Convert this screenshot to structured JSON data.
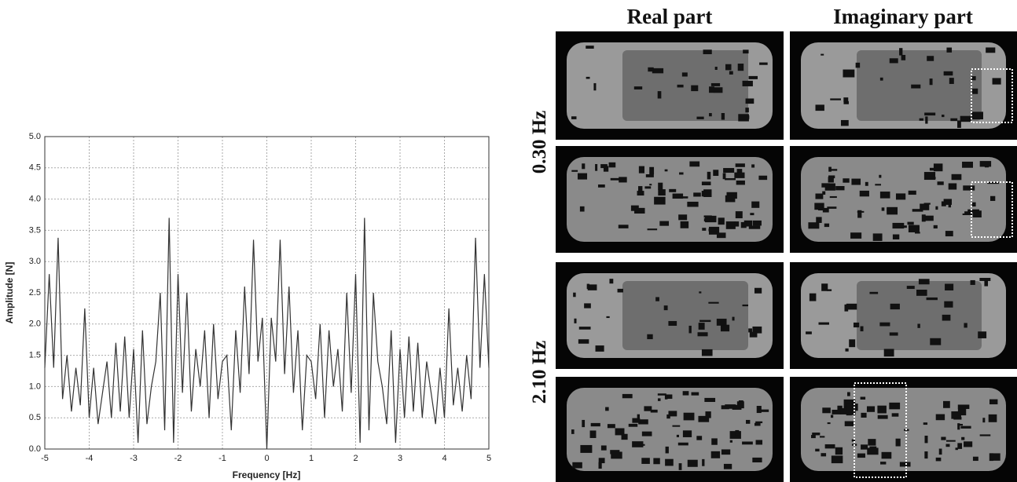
{
  "chart_data": {
    "type": "line",
    "x_label": "Frequency [Hz]",
    "y_label": "Amplitude [N]",
    "x": [
      -5,
      -4.9,
      -4.8,
      -4.7,
      -4.6,
      -4.5,
      -4.4,
      -4.3,
      -4.2,
      -4.1,
      -4,
      -3.9,
      -3.8,
      -3.7,
      -3.6,
      -3.5,
      -3.4,
      -3.3,
      -3.2,
      -3.1,
      -3,
      -2.9,
      -2.8,
      -2.7,
      -2.6,
      -2.5,
      -2.4,
      -2.3,
      -2.2,
      -2.1,
      -2,
      -1.9,
      -1.8,
      -1.7,
      -1.6,
      -1.5,
      -1.4,
      -1.3,
      -1.2,
      -1.1,
      -1,
      -0.9,
      -0.8,
      -0.7,
      -0.6,
      -0.5,
      -0.4,
      -0.3,
      -0.2,
      -0.1,
      0,
      0.1,
      0.2,
      0.3,
      0.4,
      0.5,
      0.6,
      0.7,
      0.8,
      0.9,
      1,
      1.1,
      1.2,
      1.3,
      1.4,
      1.5,
      1.6,
      1.7,
      1.8,
      1.9,
      2,
      2.1,
      2.2,
      2.3,
      2.4,
      2.5,
      2.6,
      2.7,
      2.8,
      2.9,
      3,
      3.1,
      3.2,
      3.3,
      3.4,
      3.5,
      3.6,
      3.7,
      3.8,
      3.9,
      4,
      4.1,
      4.2,
      4.3,
      4.4,
      4.5,
      4.6,
      4.7,
      4.8,
      4.9,
      5
    ],
    "values": [
      1.3,
      2.8,
      1.3,
      3.38,
      0.8,
      1.5,
      0.6,
      1.3,
      0.7,
      2.25,
      0.5,
      1.3,
      0.4,
      0.9,
      1.4,
      0.5,
      1.7,
      0.6,
      1.8,
      0.5,
      1.6,
      0.1,
      1.9,
      0.4,
      1.0,
      1.4,
      2.5,
      0.3,
      3.7,
      0.1,
      2.8,
      0.9,
      2.5,
      0.6,
      1.6,
      1.0,
      1.9,
      0.5,
      2.0,
      0.8,
      1.4,
      1.5,
      0.3,
      1.9,
      0.9,
      2.6,
      1.2,
      3.35,
      1.4,
      2.1,
      0.0,
      2.1,
      1.4,
      3.35,
      1.2,
      2.6,
      0.9,
      1.9,
      0.3,
      1.5,
      1.4,
      0.8,
      2.0,
      0.5,
      1.9,
      1.0,
      1.6,
      0.6,
      2.5,
      0.9,
      2.8,
      0.1,
      3.7,
      0.3,
      2.5,
      1.4,
      1.0,
      0.4,
      1.9,
      0.1,
      1.6,
      0.5,
      1.8,
      0.6,
      1.7,
      0.5,
      1.4,
      0.9,
      0.4,
      1.3,
      0.5,
      2.25,
      0.7,
      1.3,
      0.6,
      1.5,
      0.8,
      3.38,
      1.3,
      2.8,
      1.3
    ],
    "color": "#333333",
    "xlim": [
      -5,
      5
    ],
    "xticks": [
      -5,
      -4,
      -3,
      -2,
      -1,
      0,
      1,
      2,
      3,
      4,
      5
    ],
    "ylim": [
      0,
      5
    ],
    "yticks": [
      {
        "value": 0,
        "label": "0.0"
      },
      {
        "value": 0.5,
        "label": "0.5"
      },
      {
        "value": 1,
        "label": "1.0"
      },
      {
        "value": 1.5,
        "label": "1.5"
      },
      {
        "value": 2,
        "label": "2.0"
      },
      {
        "value": 2.5,
        "label": "2.5"
      },
      {
        "value": 3,
        "label": "3.0"
      },
      {
        "value": 3.5,
        "label": "3.5"
      },
      {
        "value": 4,
        "label": "4.0"
      },
      {
        "value": 4.5,
        "label": "4.5"
      },
      {
        "value": 5,
        "label": "5.0"
      }
    ],
    "grid": true
  },
  "panel": {
    "column_titles": [
      "Real part",
      "Imaginary part"
    ],
    "row_titles": [
      "0.30 Hz",
      "2.10 Hz"
    ]
  }
}
